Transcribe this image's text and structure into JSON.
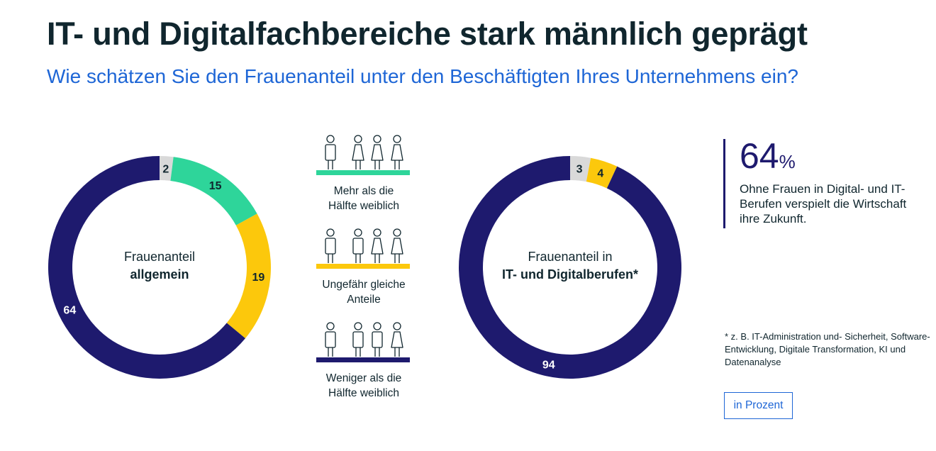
{
  "title": "IT- und Digitalfachbereiche stark männlich geprägt",
  "subtitle": "Wie schätzen Sie den Frauenanteil unter den Beschäftigten Ihres Unternehmens ein?",
  "colors": {
    "mehr": "#2ed59a",
    "gleich": "#fcc80c",
    "weniger": "#1e1a6e",
    "keine_angabe": "#d9d9d9",
    "title": "#10262e",
    "accent": "#1e66d6"
  },
  "legend": [
    {
      "key": "mehr",
      "label_lines": [
        "Mehr als die",
        "Hälfte weiblich"
      ],
      "women": 3,
      "men": 1
    },
    {
      "key": "gleich",
      "label_lines": [
        "Ungefähr gleiche",
        "Anteile"
      ],
      "women": 2,
      "men": 2
    },
    {
      "key": "weniger",
      "label_lines": [
        "Weniger als die",
        "Hälfte weiblich"
      ],
      "women": 1,
      "men": 3
    }
  ],
  "chart_data": [
    {
      "type": "pie",
      "variant": "donut",
      "center_label": {
        "line1": "Frauenanteil",
        "line2": "allgemein"
      },
      "slices": [
        {
          "key": "keine_angabe",
          "value": 2
        },
        {
          "key": "mehr",
          "value": 15
        },
        {
          "key": "gleich",
          "value": 19
        },
        {
          "key": "weniger",
          "value": 64
        }
      ],
      "unit": "in Prozent"
    },
    {
      "type": "pie",
      "variant": "donut",
      "center_label": {
        "line1": "Frauenanteil in",
        "line2": "IT- und Digitalberufen*"
      },
      "slices": [
        {
          "key": "keine_angabe",
          "value": 3
        },
        {
          "key": "gleich",
          "value": 4
        },
        {
          "key": "weniger",
          "value": 94
        }
      ],
      "unit": "in Prozent"
    }
  ],
  "kpi": {
    "value": "64",
    "unit": "%",
    "text": "Ohne Frauen in Digital- und IT-Berufen verspielt die Wirtschaft ihre Zukunft."
  },
  "footnote": "* z. B. IT-Administration und- Sicherheit, Software-Entwicklung, Digitale Transformation, KI und Datenanalyse",
  "unit_label": "in Prozent"
}
